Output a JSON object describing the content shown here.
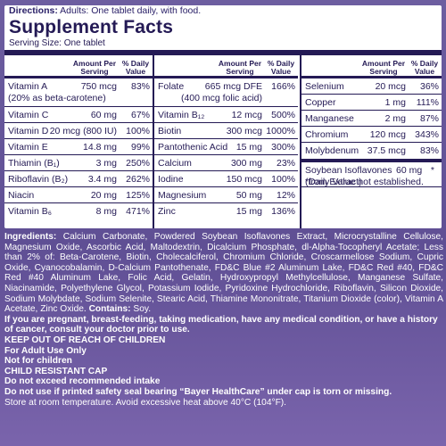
{
  "directions": {
    "label": "Directions:",
    "text": " Adults: One tablet daily, with food."
  },
  "facts": {
    "title": "Supplement Facts",
    "serving": "Serving Size: One tablet",
    "header_amount": "Amount Per Serving",
    "header_dv": "% Daily Value"
  },
  "col1": [
    {
      "name": "Vitamin A",
      "sub": "(20% as beta-carotene)",
      "amount": "750 mcg",
      "dv": "83%"
    },
    {
      "name": "Vitamin C",
      "amount": "60 mg",
      "dv": "67%"
    },
    {
      "name": "Vitamin D",
      "amount": "20 mcg (800 IU)",
      "dv": "100%"
    },
    {
      "name": "Vitamin E",
      "amount": "14.8 mg",
      "dv": "99%"
    },
    {
      "name": "Thiamin (B₁)",
      "amount": "3 mg",
      "dv": "250%"
    },
    {
      "name": "Riboflavin (B₂)",
      "amount": "3.4 mg",
      "dv": "262%"
    },
    {
      "name": "Niacin",
      "amount": "20 mg",
      "dv": "125%"
    },
    {
      "name": "Vitamin B₆",
      "amount": "8 mg",
      "dv": "471%"
    }
  ],
  "col2": [
    {
      "name": "Folate",
      "amount": "665 mcg DFE",
      "sub_amount": "(400 mcg folic acid)",
      "dv": "166%"
    },
    {
      "name": "Vitamin B₁₂",
      "amount": "12 mcg",
      "dv": "500%"
    },
    {
      "name": "Biotin",
      "amount": "300 mcg",
      "dv": "1000%"
    },
    {
      "name": "Pantothenic Acid",
      "amount": "15 mg",
      "dv": "300%"
    },
    {
      "name": "Calcium",
      "amount": "300 mg",
      "dv": "23%"
    },
    {
      "name": "Iodine",
      "amount": "150 mcg",
      "dv": "100%"
    },
    {
      "name": "Magnesium",
      "amount": "50 mg",
      "dv": "12%"
    },
    {
      "name": "Zinc",
      "amount": "15 mg",
      "dv": "136%"
    }
  ],
  "col3": [
    {
      "name": "Selenium",
      "amount": "20 mcg",
      "dv": "36%"
    },
    {
      "name": "Copper",
      "amount": "1 mg",
      "dv": "111%"
    },
    {
      "name": "Manganese",
      "amount": "2 mg",
      "dv": "87%"
    },
    {
      "name": "Chromium",
      "amount": "120 mcg",
      "dv": "343%"
    },
    {
      "name": "Molybdenum",
      "amount": "37.5 mcg",
      "dv": "83%"
    }
  ],
  "soy": {
    "name": "Soybean Isoflavones",
    "sub": "(from Extract)",
    "amount": "60 mg",
    "dv": "*"
  },
  "dv_note": "*Daily Value not established.",
  "ingredients": {
    "label": "Ingredients:",
    "text": " Calcium Carbonate, Powdered Soybean Isoflavones Extract, Microcrystalline Cellulose, Magnesium Oxide, Ascorbic Acid, Maltodextrin, Dicalcium Phosphate, dl-Alpha-Tocopheryl Acetate; Less than 2% of: Beta-Carotene, Biotin, Cholecalciferol, Chromium Chloride, Croscarmellose Sodium, Cupric Oxide, Cyanocobalamin, D-Calcium Pantothenate, FD&C Blue #2 Aluminum Lake, FD&C Red #40, FD&C Red #40 Aluminum Lake, Folic Acid, Gelatin, Hydroxypropyl Methylcellulose, Manganese Sulfate, Niacinamide, Polyethylene Glycol, Potassium Iodide, Pyridoxine Hydrochloride, Riboflavin, Silicon Dioxide, Sodium Molybdate, Sodium Selenite, Stearic Acid, Thiamine Mononitrate, Titanium Dioxide (color), Vitamin A Acetate, Zinc Oxide.",
    "contains_label": "Contains:",
    "contains_text": " Soy."
  },
  "warnings": [
    "If you are pregnant, breast-feeding, taking medication, have any medical condition, or have a history of cancer, consult your doctor prior to use.",
    "KEEP OUT OF REACH OF CHILDREN",
    "For Adult Use Only",
    "Not for children",
    "CHILD RESISTANT CAP",
    "Do not exceed recommended intake",
    "Do not use if printed safety seal bearing “Bayer HealthCare” under cap is torn or missing."
  ],
  "storage": "Store at room temperature. Avoid excessive heat above 40°C (104°F).",
  "colors": {
    "panel": "#6554a0",
    "ink": "#241a55"
  }
}
